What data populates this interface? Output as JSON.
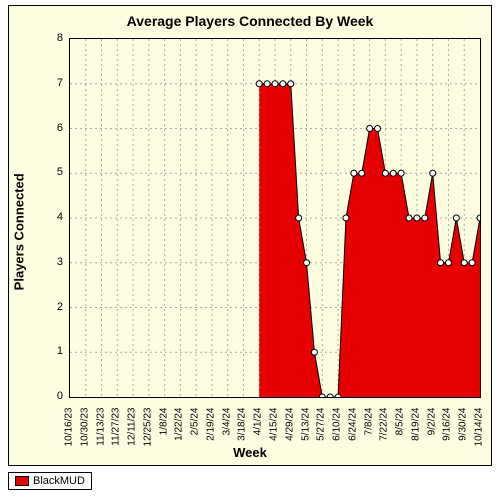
{
  "chart": {
    "type": "area",
    "title": "Average Players Connected By Week",
    "x_axis_title": "Week",
    "y_axis_title": "Players Connected",
    "background_color": "#fdfde0",
    "plot_background_color": "#fdfde0",
    "border_color": "#000000",
    "grid_color": "#aaaaaa",
    "grid_style": "dashed",
    "title_fontsize": 14,
    "axis_title_fontsize": 13,
    "tick_fontsize": 11,
    "ylim": [
      0,
      8
    ],
    "ytick_step": 1,
    "x_labels": [
      "10/16/23",
      "10/30/23",
      "11/13/23",
      "11/27/23",
      "12/11/23",
      "12/25/23",
      "1/8/24",
      "1/22/24",
      "2/5/24",
      "2/19/24",
      "3/4/24",
      "3/18/24",
      "4/1/24",
      "4/15/24",
      "4/29/24",
      "5/13/24",
      "5/27/24",
      "6/10/24",
      "6/24/24",
      "7/8/24",
      "7/22/24",
      "8/5/24",
      "8/19/24",
      "9/2/24",
      "9/16/24",
      "9/30/24",
      "10/14/24"
    ],
    "series": [
      {
        "name": "BlackMUD",
        "fill_color": "#e60000",
        "stroke_color": "#000000",
        "marker": "circle",
        "marker_fill": "#ffffff",
        "marker_stroke": "#000000",
        "marker_size": 3,
        "points": [
          {
            "x": "4/1/24",
            "y": 7
          },
          {
            "x": "4/8/24",
            "y": 7
          },
          {
            "x": "4/15/24",
            "y": 7
          },
          {
            "x": "4/22/24",
            "y": 7
          },
          {
            "x": "4/29/24",
            "y": 7
          },
          {
            "x": "5/6/24",
            "y": 4
          },
          {
            "x": "5/13/24",
            "y": 3
          },
          {
            "x": "5/20/24",
            "y": 1
          },
          {
            "x": "5/27/24",
            "y": 0
          },
          {
            "x": "6/3/24",
            "y": 0
          },
          {
            "x": "6/10/24",
            "y": 0
          },
          {
            "x": "6/17/24",
            "y": 4
          },
          {
            "x": "6/24/24",
            "y": 5
          },
          {
            "x": "7/1/24",
            "y": 5
          },
          {
            "x": "7/8/24",
            "y": 6
          },
          {
            "x": "7/15/24",
            "y": 6
          },
          {
            "x": "7/22/24",
            "y": 5
          },
          {
            "x": "7/29/24",
            "y": 5
          },
          {
            "x": "8/5/24",
            "y": 5
          },
          {
            "x": "8/12/24",
            "y": 4
          },
          {
            "x": "8/19/24",
            "y": 4
          },
          {
            "x": "8/26/24",
            "y": 4
          },
          {
            "x": "9/2/24",
            "y": 5
          },
          {
            "x": "9/9/24",
            "y": 3
          },
          {
            "x": "9/16/24",
            "y": 3
          },
          {
            "x": "9/23/24",
            "y": 4
          },
          {
            "x": "9/30/24",
            "y": 3
          },
          {
            "x": "10/7/24",
            "y": 3
          },
          {
            "x": "10/14/24",
            "y": 4
          }
        ]
      }
    ],
    "legend_position": "bottom-left"
  }
}
